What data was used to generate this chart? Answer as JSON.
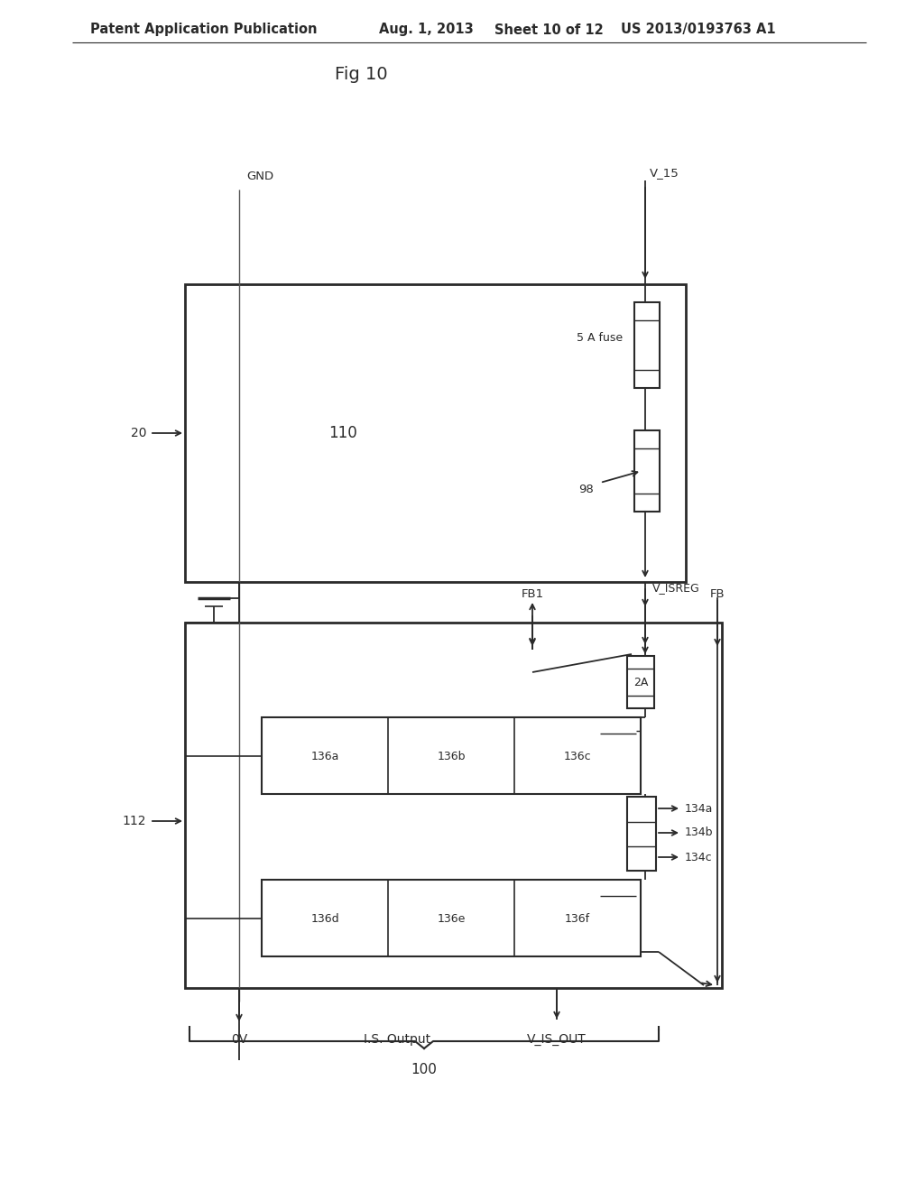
{
  "title_header": "Patent Application Publication",
  "date_header": "Aug. 1, 2013",
  "sheet_header": "Sheet 10 of 12",
  "patent_header": "US 2013/0193763 A1",
  "fig_title": "Fig 10",
  "bg_color": "#ffffff",
  "line_color": "#2a2a2a",
  "header_fontsize": 11,
  "label_fontsize": 10,
  "small_fontsize": 9,
  "fig_title_fontsize": 14
}
